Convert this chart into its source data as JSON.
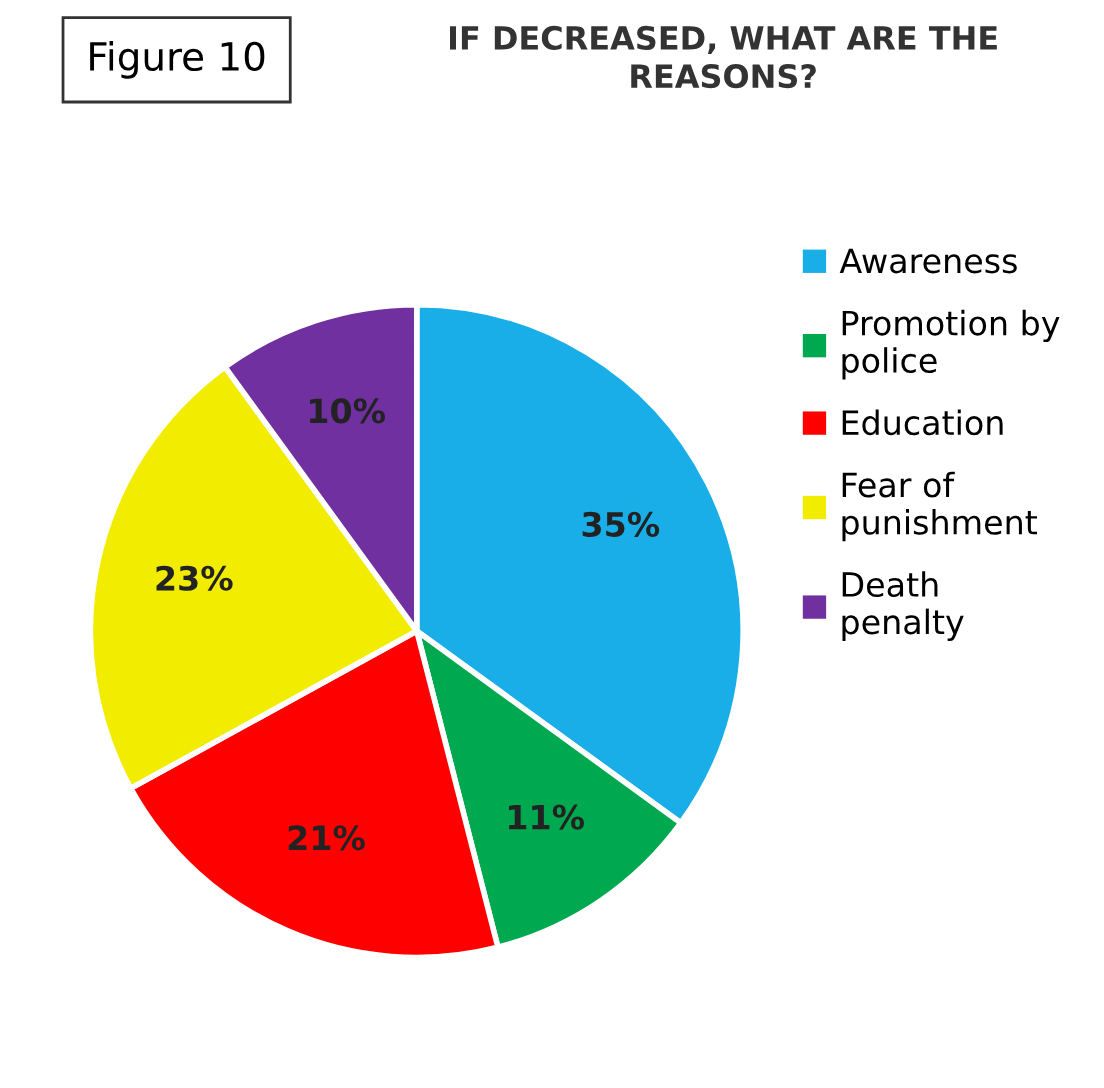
{
  "chart_data": {
    "type": "pie",
    "title": "IF DECREASED, WHAT ARE THE\nREASONS?",
    "annotations": [
      "Figure 10"
    ],
    "categories": [
      "Awareness",
      "Promotion by\npolice",
      "Education",
      "Fear of\npunishment",
      "Death\npenalty"
    ],
    "values": [
      35,
      11,
      21,
      23,
      10
    ],
    "value_labels": [
      "35%",
      "11%",
      "21%",
      "23%",
      "10%"
    ],
    "colors": [
      "#1aaee8",
      "#00a84f",
      "#ff0000",
      "#f2ec00",
      "#7030a0"
    ],
    "legend": "right"
  }
}
